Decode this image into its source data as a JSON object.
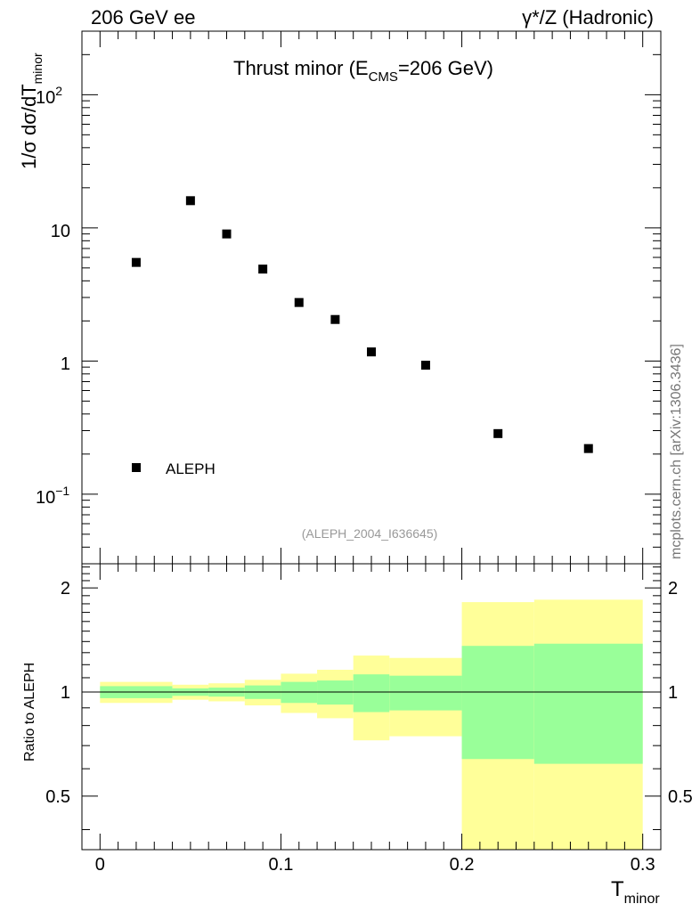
{
  "header": {
    "left": "206 GeV ee",
    "right": "γ*/Z (Hadronic)"
  },
  "chart_data": [
    {
      "type": "scatter",
      "title_main": "Thrust minor (E",
      "title_sub": "CMS",
      "title_tail": "=206 GeV)",
      "ylabel_main": "1/σ  dσ/dT",
      "ylabel_sub": "minor",
      "yscale": "log",
      "ylim": [
        0.03,
        300
      ],
      "xlim": [
        -0.01,
        0.31
      ],
      "ytick_labels": {
        "e2_base": "10",
        "e2_exp": "2",
        "ten": "10",
        "one": "1",
        "em1_base": "10",
        "em1_exp": "−1"
      },
      "series": [
        {
          "name": "ALEPH",
          "points": [
            {
              "x": 0.02,
              "y": 5.5
            },
            {
              "x": 0.05,
              "y": 16.0
            },
            {
              "x": 0.07,
              "y": 9.0
            },
            {
              "x": 0.09,
              "y": 4.9
            },
            {
              "x": 0.11,
              "y": 2.75
            },
            {
              "x": 0.13,
              "y": 2.05
            },
            {
              "x": 0.15,
              "y": 1.17
            },
            {
              "x": 0.18,
              "y": 0.93
            },
            {
              "x": 0.22,
              "y": 0.285
            },
            {
              "x": 0.27,
              "y": 0.22
            }
          ]
        }
      ],
      "legend": "ALEPH",
      "annotation": "(ALEPH_2004_I636645)"
    },
    {
      "type": "area",
      "ylabel": "Ratio to ALEPH",
      "xlabel_main": "T",
      "xlabel_sub": "minor",
      "yscale": "log",
      "ylim": [
        0.35,
        2.35
      ],
      "xlim": [
        -0.01,
        0.31
      ],
      "x_tick_labels": [
        "0",
        "0.1",
        "0.2",
        "0.3"
      ],
      "y_tick_labels": [
        "0.5",
        "1",
        "2"
      ],
      "reference_line": 1,
      "bins": [
        {
          "x0": 0.0,
          "x1": 0.04,
          "inner": [
            0.96,
            1.04
          ],
          "outer": [
            0.93,
            1.07
          ]
        },
        {
          "x0": 0.04,
          "x1": 0.06,
          "inner": [
            0.975,
            1.025
          ],
          "outer": [
            0.95,
            1.05
          ]
        },
        {
          "x0": 0.06,
          "x1": 0.08,
          "inner": [
            0.97,
            1.03
          ],
          "outer": [
            0.94,
            1.06
          ]
        },
        {
          "x0": 0.08,
          "x1": 0.1,
          "inner": [
            0.955,
            1.045
          ],
          "outer": [
            0.915,
            1.085
          ]
        },
        {
          "x0": 0.1,
          "x1": 0.12,
          "inner": [
            0.93,
            1.07
          ],
          "outer": [
            0.87,
            1.13
          ]
        },
        {
          "x0": 0.12,
          "x1": 0.14,
          "inner": [
            0.92,
            1.08
          ],
          "outer": [
            0.84,
            1.16
          ]
        },
        {
          "x0": 0.14,
          "x1": 0.16,
          "inner": [
            0.875,
            1.125
          ],
          "outer": [
            0.725,
            1.275
          ]
        },
        {
          "x0": 0.16,
          "x1": 0.2,
          "inner": [
            0.885,
            1.115
          ],
          "outer": [
            0.745,
            1.255
          ]
        },
        {
          "x0": 0.2,
          "x1": 0.24,
          "inner": [
            0.64,
            1.36
          ],
          "outer": [
            0.35,
            1.82
          ]
        },
        {
          "x0": 0.24,
          "x1": 0.3,
          "inner": [
            0.62,
            1.38
          ],
          "outer": [
            0.35,
            1.85
          ]
        }
      ],
      "colors": {
        "inner": "#99ff99",
        "outer": "#ffff99"
      }
    }
  ],
  "side_label": "mcplots.cern.ch [arXiv:1306.3436]"
}
